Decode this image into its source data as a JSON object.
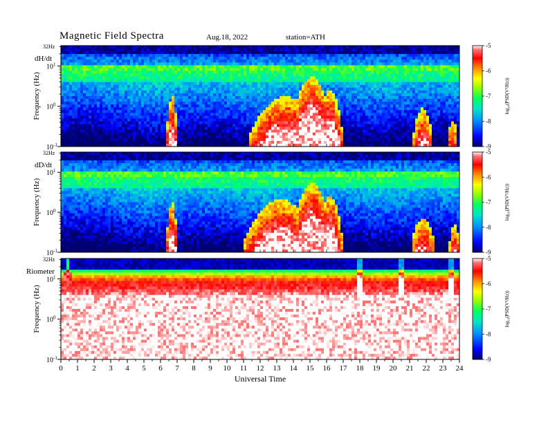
{
  "header": {
    "title": "Magnetic  Field  Spectra",
    "date": "Aug.18, 2022",
    "station": "station=ATH"
  },
  "xaxis": {
    "label": "Universal Time",
    "ticks": [
      "0",
      "1",
      "2",
      "3",
      "4",
      "5",
      "6",
      "7",
      "8",
      "9",
      "10",
      "11",
      "12",
      "13",
      "14",
      "15",
      "16",
      "17",
      "18",
      "19",
      "20",
      "21",
      "22",
      "23",
      "24"
    ]
  },
  "yaxis": {
    "label": "Frequency  (Hz)",
    "top_label": "32Hz",
    "tick_base": "10",
    "tick_exps": [
      "1",
      "0",
      "-1"
    ]
  },
  "colorbar": {
    "ticks": [
      "-5",
      "-6",
      "-7",
      "-8",
      "-9"
    ],
    "label": "log₁₀(PSD(V²/Hz))"
  },
  "chart_data": [
    {
      "type": "heatmap",
      "panel": "dH/dt",
      "x_range_hours": [
        0,
        24
      ],
      "y_range_hz": [
        0.1,
        32
      ],
      "y_scale": "log",
      "color_range": [
        -9,
        -5
      ],
      "colormap": [
        "#000080",
        "#0000ff",
        "#00aaff",
        "#00ff80",
        "#80ff00",
        "#ffff00",
        "#ff8000",
        "#ff0000",
        "#ffffff"
      ],
      "enhancement_events": [
        {
          "center_hour": 6.7,
          "width_hours": 0.35,
          "peak_hz": 1.0
        },
        {
          "center_hour": 13.5,
          "width_hours": 2.2,
          "peak_hz": 1.0
        },
        {
          "center_hour": 15.1,
          "width_hours": 1.4,
          "peak_hz": 3.0
        },
        {
          "center_hour": 16.2,
          "width_hours": 0.8,
          "peak_hz": 1.5
        },
        {
          "center_hour": 21.8,
          "width_hours": 0.6,
          "peak_hz": 0.5
        },
        {
          "center_hour": 23.6,
          "width_hours": 0.3,
          "peak_hz": 0.25
        }
      ]
    },
    {
      "type": "heatmap",
      "panel": "dD/dt",
      "x_range_hours": [
        0,
        24
      ],
      "y_range_hz": [
        0.1,
        32
      ],
      "y_scale": "log",
      "color_range": [
        -9,
        -5
      ],
      "enhancement_events": [
        {
          "center_hour": 6.7,
          "width_hours": 0.35,
          "peak_hz": 1.0
        },
        {
          "center_hour": 13.2,
          "width_hours": 2.2,
          "peak_hz": 1.2
        },
        {
          "center_hour": 15.1,
          "width_hours": 1.3,
          "peak_hz": 3.0
        },
        {
          "center_hour": 16.2,
          "width_hours": 0.8,
          "peak_hz": 1.5
        },
        {
          "center_hour": 21.8,
          "width_hours": 0.7,
          "peak_hz": 0.4
        },
        {
          "center_hour": 23.7,
          "width_hours": 0.3,
          "peak_hz": 0.3
        }
      ]
    },
    {
      "type": "heatmap",
      "panel": "Riometer",
      "x_range_hours": [
        0,
        24
      ],
      "y_range_hz": [
        0.1,
        32
      ],
      "y_scale": "log",
      "color_range": [
        -9,
        -5
      ],
      "spikes_hours": [
        0.45,
        18.0,
        20.5,
        23.5
      ]
    }
  ]
}
